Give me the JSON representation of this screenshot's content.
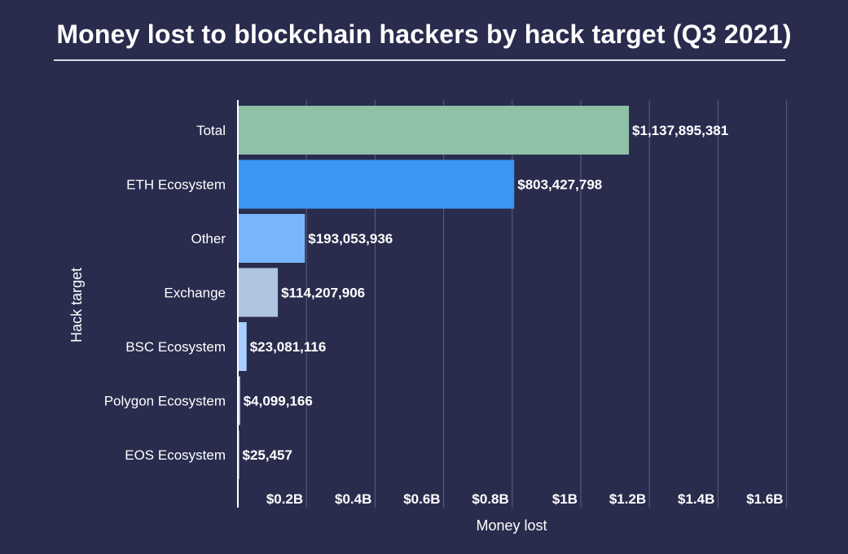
{
  "chart_data": {
    "type": "bar",
    "orientation": "horizontal",
    "title": "Money lost to blockchain hackers by hack target (Q3 2021)",
    "xlabel": "Money lost",
    "ylabel": "Hack target",
    "xlim": [
      0,
      1600000000
    ],
    "x_ticks": [
      {
        "value": 200000000,
        "label": "$0.2B"
      },
      {
        "value": 400000000,
        "label": "$0.4B"
      },
      {
        "value": 600000000,
        "label": "$0.6B"
      },
      {
        "value": 800000000,
        "label": "$0.8B"
      },
      {
        "value": 1000000000,
        "label": "$1B"
      },
      {
        "value": 1200000000,
        "label": "$1.2B"
      },
      {
        "value": 1400000000,
        "label": "$1.4B"
      },
      {
        "value": 1600000000,
        "label": "$1.6B"
      }
    ],
    "grid": true,
    "legend": "none",
    "categories": [
      "Total",
      "ETH Ecosystem",
      "Other",
      "Exchange",
      "BSC Ecosystem",
      "Polygon Ecosystem",
      "EOS Ecosystem"
    ],
    "values": [
      1137895381,
      803427798,
      193053936,
      114207906,
      23081116,
      4099166,
      25457
    ],
    "value_labels": [
      "$1,137,895,381",
      "$803,427,798",
      "$193,053,936",
      "$114,207,906",
      "$23,081,116",
      "$4,099,166",
      "$25,457"
    ],
    "bar_colors": [
      "#8fc1a9",
      "#3b96f2",
      "#78b6fb",
      "#b0c4e0",
      "#a9cdfd",
      "#c8d6e8",
      "#d8e4f4"
    ]
  },
  "colors": {
    "background": "#2a2c4e",
    "gridline": "#5e6081",
    "axis": "#ffffff",
    "text": "#ffffff"
  }
}
